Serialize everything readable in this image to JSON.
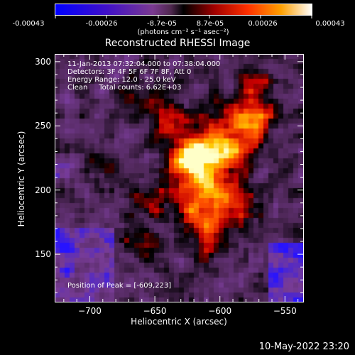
{
  "colorbar": {
    "tick_labels": [
      "-0.00043",
      "-0.00026",
      "-8.7e-05",
      "8.7e-05",
      "0.00026",
      "0.00043"
    ],
    "units": "(photons cm⁻² s⁻¹ asec⁻²)",
    "range": [
      -0.00043,
      0.00043
    ]
  },
  "info": {
    "time": "11-Jan-2013 07:32:04.000 to 07:38:04.000",
    "detectors": "Detectors: 3F 4F 5F 6F 7F 8F, Att 0",
    "energy": "Energy Range: 12.0 - 25.0 keV",
    "clean": "Clean     Total counts: 6.62E+03"
  },
  "peak": "Position of Peak = [-609,223]",
  "footer_date": "10-May-2022 23:20",
  "chart_data": {
    "type": "heatmap",
    "title": "Reconstructed RHESSI Image",
    "xlabel": "Heliocentric X (arcsec)",
    "ylabel": "Heliocentric Y (arcsec)",
    "xlim": [
      -727,
      -536
    ],
    "ylim": [
      113,
      306
    ],
    "x_ticks": [
      -700,
      -650,
      -600,
      -550
    ],
    "y_ticks": [
      150,
      200,
      250,
      300
    ],
    "x_tick_labels": [
      "−700",
      "−650",
      "−600",
      "−550"
    ],
    "y_tick_labels": [
      "150",
      "200",
      "250",
      "300"
    ],
    "peak_position": [
      -609,
      223
    ]
  }
}
